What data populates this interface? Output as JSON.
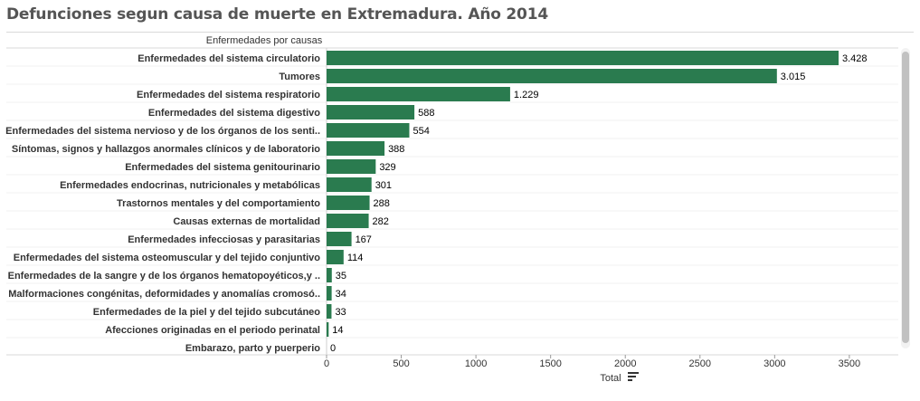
{
  "title": "Defunciones segun causa de muerte en Extremadura. Año 2014",
  "chart_data": {
    "type": "bar",
    "orientation": "horizontal",
    "row_header": "Enfermedades por causas",
    "xlabel": "Total",
    "xlim": [
      0,
      3700
    ],
    "xticks": [
      0,
      500,
      1000,
      1500,
      2000,
      2500,
      3000,
      3500
    ],
    "bar_color": "#2a7b4f",
    "categories": [
      "Enfermedades del sistema circulatorio",
      "Tumores",
      "Enfermedades del sistema respiratorio",
      "Enfermedades del sistema digestivo",
      "Enfermedades del sistema nervioso y de los órganos de los senti..",
      "Síntomas, signos y hallazgos anormales clínicos y de laboratorio",
      "Enfermedades del sistema genitourinario",
      "Enfermedades endocrinas, nutricionales y metabólicas",
      "Trastornos mentales y del comportamiento",
      "Causas externas de mortalidad",
      "Enfermedades infecciosas y parasitarias",
      "Enfermedades del sistema osteomuscular y del tejido conjuntivo",
      "Enfermedades de la sangre y de los órganos hematopoyéticos,y ..",
      "Malformaciones congénitas, deformidades y anomalías cromosó..",
      "Enfermedades de la piel y del tejido subcutáneo",
      "Afecciones originadas en el periodo perinatal",
      "Embarazo, parto y puerperio"
    ],
    "values": [
      3428,
      3015,
      1229,
      588,
      554,
      388,
      329,
      301,
      288,
      282,
      167,
      114,
      35,
      34,
      33,
      14,
      0
    ],
    "value_labels": [
      "3.428",
      "3.015",
      "1.229",
      "588",
      "554",
      "388",
      "329",
      "301",
      "288",
      "282",
      "167",
      "114",
      "35",
      "34",
      "33",
      "14",
      "0"
    ]
  }
}
